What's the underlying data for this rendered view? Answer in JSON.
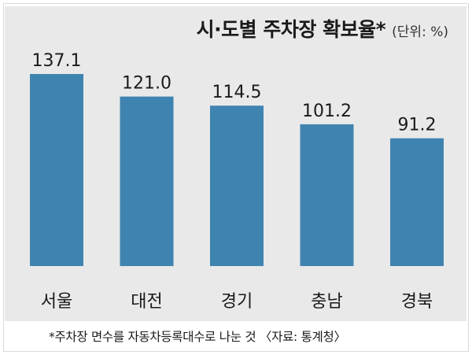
{
  "header": {
    "title": "시·도별 주차장 확보율*",
    "unit": "(단위: %)"
  },
  "footnote": "*주차장 면수를 자동차등록대수로 나눈 것 〈자료: 통계청〉",
  "colors": {
    "bar": "#3f84b0",
    "background": "#e9e9e9",
    "text": "#1a1a1a"
  },
  "chart_data": {
    "type": "bar",
    "title": "시·도별 주차장 확보율*",
    "unit": "%",
    "categories": [
      "서울",
      "대전",
      "경기",
      "충남",
      "경북"
    ],
    "values": [
      137.1,
      121.0,
      114.5,
      101.2,
      91.2
    ],
    "value_labels": [
      "137.1",
      "121.0",
      "114.5",
      "101.2",
      "91.2"
    ],
    "ylim": [
      0,
      145
    ],
    "grid": false,
    "legend": "none"
  }
}
